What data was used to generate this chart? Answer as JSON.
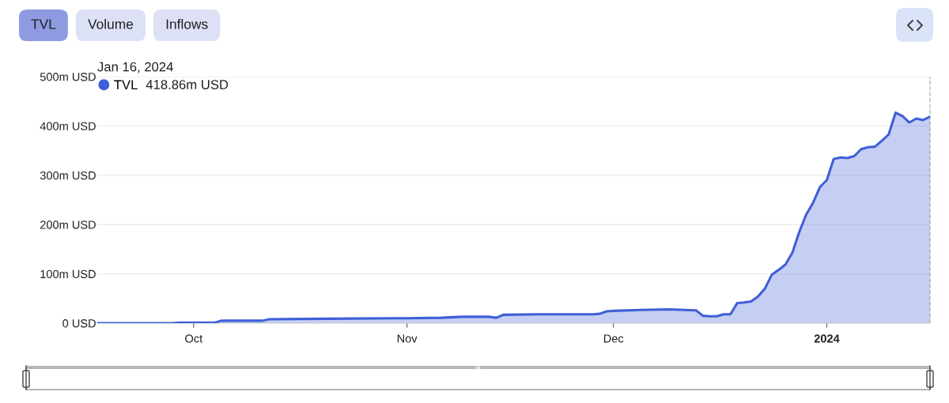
{
  "chart_data": {
    "type": "area",
    "x": [
      "2023-09-17",
      "2023-09-28",
      "2023-09-29",
      "2023-10-04",
      "2023-10-05",
      "2023-10-11",
      "2023-10-12",
      "2023-10-20",
      "2023-10-30",
      "2023-11-01",
      "2023-11-06",
      "2023-11-09",
      "2023-11-13",
      "2023-11-14",
      "2023-11-15",
      "2023-11-20",
      "2023-11-28",
      "2023-11-29",
      "2023-11-30",
      "2023-12-01",
      "2023-12-05",
      "2023-12-09",
      "2023-12-13",
      "2023-12-14",
      "2023-12-15",
      "2023-12-16",
      "2023-12-17",
      "2023-12-18",
      "2023-12-19",
      "2023-12-20",
      "2023-12-21",
      "2023-12-22",
      "2023-12-23",
      "2023-12-24",
      "2023-12-25",
      "2023-12-26",
      "2023-12-27",
      "2023-12-28",
      "2023-12-29",
      "2023-12-30",
      "2023-12-31",
      "2024-01-01",
      "2024-01-02",
      "2024-01-03",
      "2024-01-04",
      "2024-01-05",
      "2024-01-06",
      "2024-01-07",
      "2024-01-08",
      "2024-01-09",
      "2024-01-10",
      "2024-01-11",
      "2024-01-12",
      "2024-01-13",
      "2024-01-14",
      "2024-01-15",
      "2024-01-16"
    ],
    "series": [
      {
        "name": "TVL",
        "color": "#3f5fd8",
        "values": [
          0,
          0,
          1,
          1,
          5,
          5,
          8,
          9,
          10,
          10,
          11,
          13,
          13,
          11,
          17,
          18,
          18,
          19,
          24,
          25,
          27,
          28,
          26,
          15,
          14,
          14,
          18,
          18,
          41,
          42,
          44,
          54,
          70,
          98,
          108,
          119,
          143,
          185,
          220,
          244,
          276,
          290,
          333,
          336,
          335,
          339,
          353,
          357,
          358,
          370,
          383,
          427,
          420,
          407,
          415,
          412,
          418.86
        ]
      }
    ],
    "xlim": [
      "2023-09-17",
      "2024-01-16"
    ],
    "xticks": [
      {
        "value": "2023-10-01",
        "label": "Oct"
      },
      {
        "value": "2023-11-01",
        "label": "Nov"
      },
      {
        "value": "2023-12-01",
        "label": "Dec"
      },
      {
        "value": "2024-01-01",
        "label": "2024"
      }
    ],
    "ylim": [
      0,
      500
    ],
    "yticks": [
      {
        "value": 0,
        "label": "0 USD"
      },
      {
        "value": 100,
        "label": "100m USD"
      },
      {
        "value": 200,
        "label": "200m USD"
      },
      {
        "value": 300,
        "label": "300m USD"
      },
      {
        "value": 400,
        "label": "400m USD"
      },
      {
        "value": 500,
        "label": "500m USD"
      }
    ],
    "grid": "y",
    "legend": "top left",
    "ref_lines": [
      {
        "axis": "x",
        "value": "2024-01-16",
        "color": "#bbbbbb",
        "line_style": "dashed"
      }
    ],
    "annotations": [
      "TVL",
      "Volume",
      "Inflows",
      "Jan 16, 2024",
      "418.86m USD"
    ]
  }
}
